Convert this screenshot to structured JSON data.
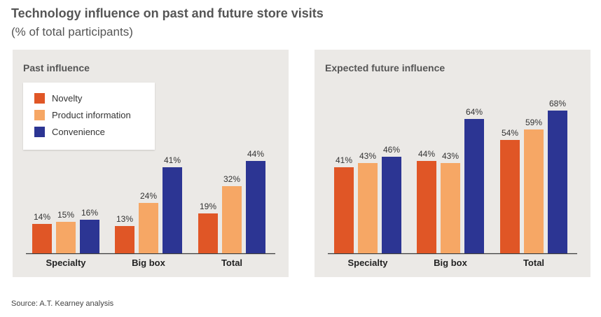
{
  "title": "Technology influence on past and future store visits",
  "subtitle": "(% of total participants)",
  "source": "Source: A.T. Kearney analysis",
  "colors": {
    "Novelty": "#e05626",
    "Product information": "#f6a765",
    "Convenience": "#2c3593",
    "panel_background": "#ebe9e6"
  },
  "legend": [
    "Novelty",
    "Product information",
    "Convenience"
  ],
  "chart_data": [
    {
      "type": "bar",
      "title": "Past influence",
      "categories": [
        "Specialty",
        "Big box",
        "Total"
      ],
      "series": [
        {
          "name": "Novelty",
          "values": [
            14,
            13,
            19
          ],
          "labels": [
            "14%",
            "13%",
            "19%"
          ]
        },
        {
          "name": "Product information",
          "values": [
            15,
            24,
            32
          ],
          "labels": [
            "15%",
            "24%",
            "32%"
          ]
        },
        {
          "name": "Convenience",
          "values": [
            16,
            41,
            44
          ],
          "labels": [
            "16%",
            "41%",
            "44%"
          ]
        }
      ],
      "ylim": [
        0,
        75
      ],
      "legend_position": "top-left",
      "grid": false
    },
    {
      "type": "bar",
      "title": "Expected future influence",
      "categories": [
        "Specialty",
        "Big box",
        "Total"
      ],
      "series": [
        {
          "name": "Novelty",
          "values": [
            41,
            44,
            54
          ],
          "labels": [
            "41%",
            "44%",
            "54%"
          ]
        },
        {
          "name": "Product information",
          "values": [
            43,
            43,
            59
          ],
          "labels": [
            "43%",
            "43%",
            "59%"
          ]
        },
        {
          "name": "Convenience",
          "values": [
            46,
            64,
            68
          ],
          "labels": [
            "46%",
            "64%",
            "68%"
          ]
        }
      ],
      "ylim": [
        0,
        75
      ],
      "legend_position": "none",
      "grid": false
    }
  ]
}
